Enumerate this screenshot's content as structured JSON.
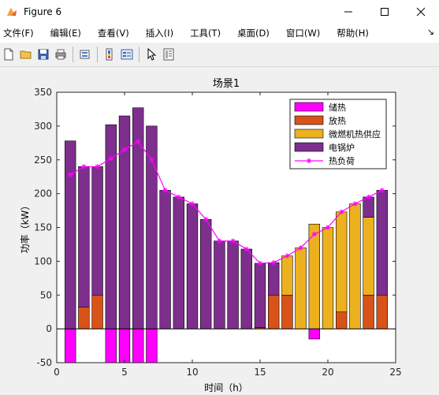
{
  "window": {
    "title": "Figure 6",
    "icons": {
      "app": "matlab-figure-icon",
      "minimize": "minimize-icon",
      "maximize": "maximize-icon",
      "close": "close-icon"
    }
  },
  "menu": {
    "items": [
      "文件(F)",
      "编辑(E)",
      "查看(V)",
      "插入(I)",
      "工具(T)",
      "桌面(D)",
      "窗口(W)",
      "帮助(H)"
    ],
    "dock_icon": "dock-arrow-icon",
    "dock_glyph": "↘"
  },
  "toolbar": {
    "buttons": [
      "new-file-icon",
      "open-folder-icon",
      "save-icon",
      "print-icon",
      "link-plot-icon",
      "colorbar-icon",
      "legend-icon",
      "pointer-icon",
      "property-editor-icon"
    ]
  },
  "chart_data": {
    "type": "bar",
    "title": "场景1",
    "xlabel": "时间（h）",
    "ylabel": "功率（kW）",
    "xlim": [
      0,
      25
    ],
    "ylim": [
      -50,
      350
    ],
    "xticks": [
      0,
      5,
      10,
      15,
      20,
      25
    ],
    "yticks": [
      -50,
      0,
      50,
      100,
      150,
      200,
      250,
      300,
      350
    ],
    "grid": false,
    "legend_position": "top-right",
    "x": [
      1,
      2,
      3,
      4,
      5,
      6,
      7,
      8,
      9,
      10,
      11,
      12,
      13,
      14,
      15,
      16,
      17,
      18,
      19,
      20,
      21,
      22,
      23,
      24
    ],
    "series": [
      {
        "name": "储热",
        "kind": "bar",
        "color": "#ff00ff",
        "values": [
          -50,
          0,
          0,
          -50,
          -50,
          -50,
          -50,
          0,
          0,
          0,
          0,
          0,
          0,
          0,
          0,
          0,
          0,
          0,
          -15,
          0,
          0,
          0,
          0,
          0
        ]
      },
      {
        "name": "放热",
        "kind": "bar",
        "color": "#d95319",
        "values": [
          0,
          32,
          50,
          0,
          0,
          0,
          0,
          0,
          0,
          0,
          0,
          0,
          0,
          0,
          2,
          50,
          50,
          0,
          0,
          0,
          25,
          0,
          50,
          50
        ]
      },
      {
        "name": "微燃机热供应",
        "kind": "bar",
        "color": "#edb120",
        "values": [
          0,
          0,
          0,
          0,
          0,
          0,
          0,
          0,
          0,
          0,
          0,
          0,
          0,
          0,
          0,
          0,
          58,
          120,
          155,
          150,
          148,
          185,
          115,
          0
        ]
      },
      {
        "name": "电锅炉",
        "kind": "bar",
        "color": "#7e2f8e",
        "values": [
          278,
          208,
          190,
          302,
          315,
          327,
          300,
          205,
          195,
          185,
          162,
          130,
          130,
          118,
          95,
          48,
          0,
          0,
          0,
          0,
          0,
          0,
          30,
          155
        ]
      },
      {
        "name": "热负荷",
        "kind": "line",
        "color": "#ff00ff",
        "marker": "*",
        "values": [
          228,
          240,
          240,
          252,
          265,
          277,
          250,
          205,
          195,
          185,
          162,
          130,
          130,
          118,
          97,
          98,
          108,
          120,
          140,
          150,
          173,
          185,
          195,
          205
        ]
      }
    ]
  }
}
